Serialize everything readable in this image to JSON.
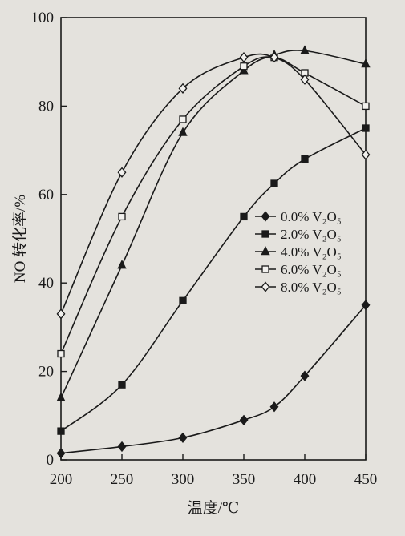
{
  "chart_data": {
    "type": "line",
    "title": "",
    "xlabel": "温度/℃",
    "ylabel": "NO 转化率/%",
    "xlim": [
      200,
      450
    ],
    "ylim": [
      0,
      100
    ],
    "xticks": [
      200,
      250,
      300,
      350,
      400,
      450
    ],
    "yticks": [
      0,
      20,
      40,
      60,
      80,
      100
    ],
    "grid": false,
    "legend_position": "center-right",
    "series": [
      {
        "name": "0.0% V₂O₅",
        "marker": "diamond-filled",
        "x": [
          200,
          250,
          300,
          350,
          375,
          400,
          450
        ],
        "y": [
          1.5,
          3,
          5,
          9,
          12,
          19,
          35
        ]
      },
      {
        "name": "2.0% V₂O₅",
        "marker": "square-filled",
        "x": [
          200,
          250,
          300,
          350,
          375,
          400,
          450
        ],
        "y": [
          6.5,
          17,
          36,
          55,
          62.5,
          68,
          75
        ]
      },
      {
        "name": "4.0% V₂O₅",
        "marker": "triangle-filled",
        "x": [
          200,
          250,
          300,
          350,
          375,
          400,
          450
        ],
        "y": [
          14,
          44,
          74,
          88,
          91.5,
          92.5,
          89.5
        ]
      },
      {
        "name": "6.0% V₂O₅",
        "marker": "square-open",
        "x": [
          200,
          250,
          300,
          350,
          375,
          400,
          450
        ],
        "y": [
          24,
          55,
          77,
          89,
          91,
          87.5,
          80
        ]
      },
      {
        "name": "8.0% V₂O₅",
        "marker": "diamond-open",
        "x": [
          200,
          250,
          300,
          350,
          375,
          400,
          450
        ],
        "y": [
          33,
          65,
          84,
          91,
          91,
          86,
          69
        ]
      }
    ]
  }
}
